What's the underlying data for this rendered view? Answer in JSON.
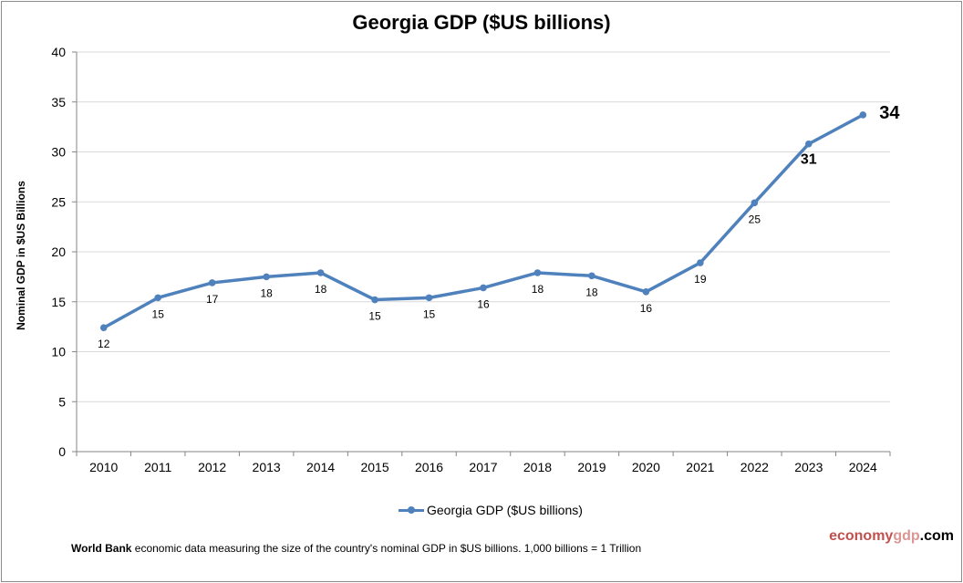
{
  "chart_data": {
    "type": "line",
    "title": "Georgia GDP ($US billions)",
    "xlabel": "",
    "ylabel": "Nominal GDP in $US Billions",
    "ylim": [
      0,
      40
    ],
    "yticks": [
      0,
      5,
      10,
      15,
      20,
      25,
      30,
      35,
      40
    ],
    "grid": true,
    "legend_position": "bottom",
    "categories": [
      "2010",
      "2011",
      "2012",
      "2013",
      "2014",
      "2015",
      "2016",
      "2017",
      "2018",
      "2019",
      "2020",
      "2021",
      "2022",
      "2023",
      "2024"
    ],
    "series": [
      {
        "name": "Georgia GDP ($US billions)",
        "color": "#4f81bd",
        "values": [
          12.4,
          15.4,
          16.9,
          17.5,
          17.9,
          15.2,
          15.4,
          16.4,
          17.9,
          17.6,
          16.0,
          18.9,
          24.9,
          30.8,
          33.7
        ],
        "data_labels": [
          "12",
          "15",
          "17",
          "18",
          "18",
          "15",
          "15",
          "16",
          "18",
          "18",
          "16",
          "19",
          "25",
          "31",
          "34"
        ]
      }
    ]
  },
  "footer": {
    "source_bold": "World Bank",
    "text": " economic data  measuring the size of the country's nominal GDP in $US billions. 1,000 billions = 1 Trillion"
  },
  "brand": {
    "part1": "economy",
    "part2": "gdp",
    "part3": ".com"
  }
}
